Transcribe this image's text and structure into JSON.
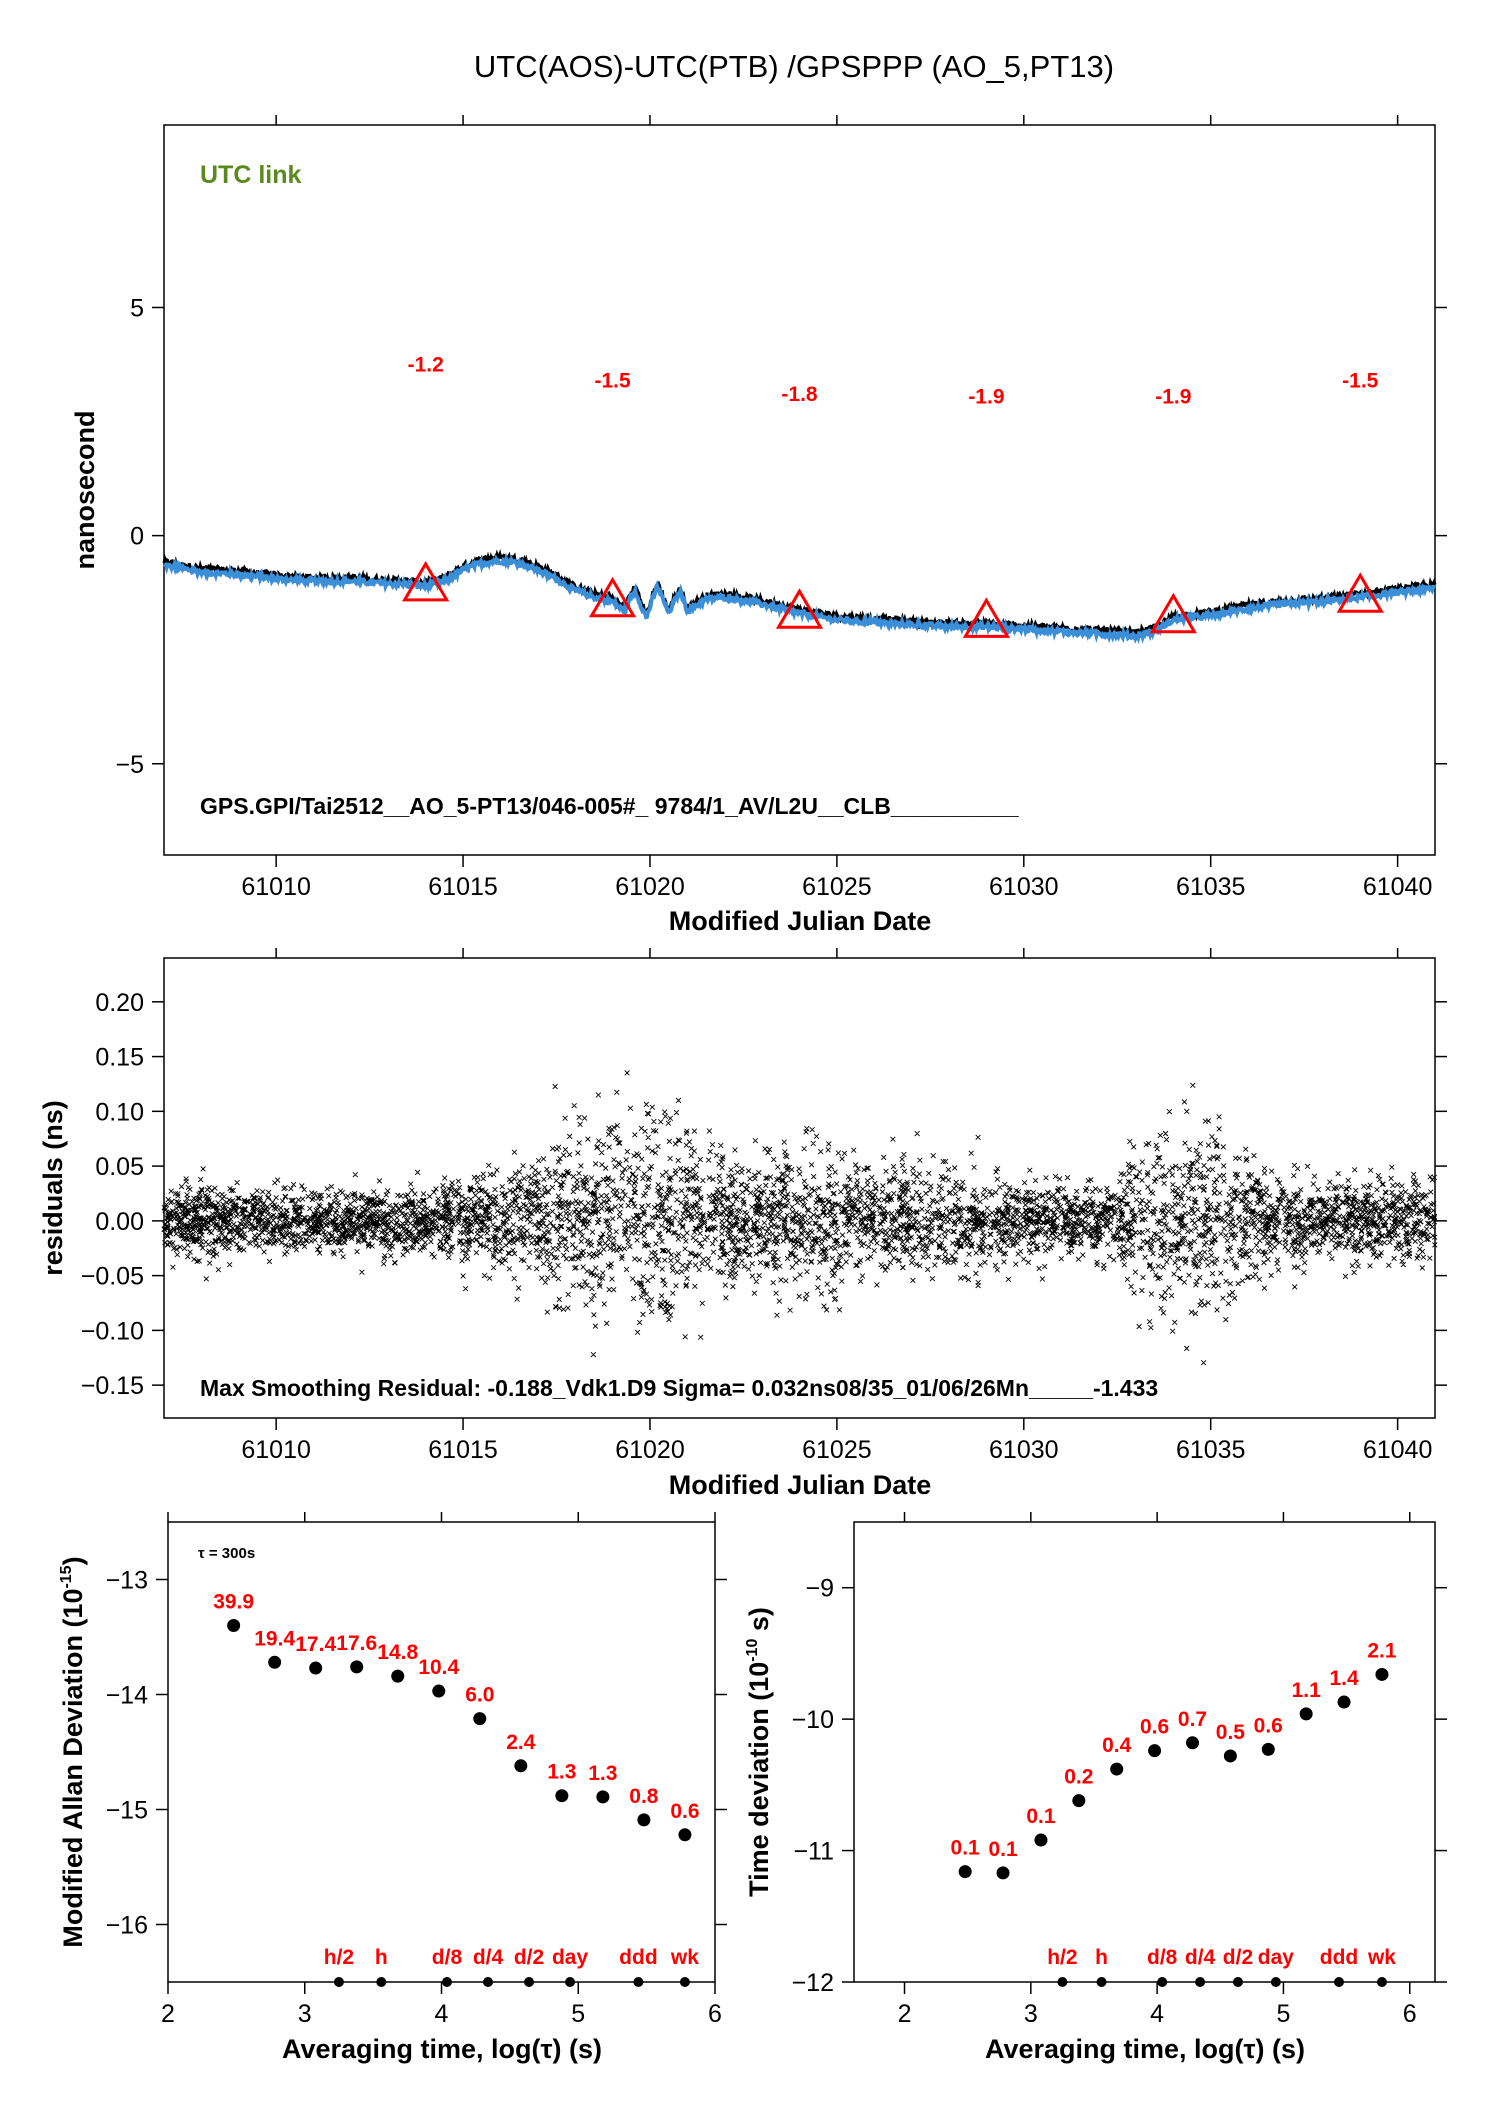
{
  "title": "UTC(AOS)-UTC(PTB)  /GPSPPP  (AO_5,PT13)",
  "chart_data": [
    {
      "type": "line",
      "name": "top",
      "xlabel": "Modified Julian Date",
      "ylabel": "nanosecond",
      "xlim": [
        61007,
        61041
      ],
      "ylim": [
        -7,
        9
      ],
      "x_ticks": [
        61010,
        61015,
        61020,
        61025,
        61030,
        61035,
        61040
      ],
      "y_ticks": [
        -5,
        0,
        5
      ],
      "y_tick_labels": [
        "−5",
        "0",
        "5"
      ],
      "annotation_link": "UTC link",
      "annotation_file": "GPS.GPI/Tai2512__AO_5-PT13/046-005#_  9784/1_AV/L2U__CLB__________",
      "line_color": "#3b8fd9",
      "shadow_color": "#000000",
      "marker_color": "#ff0000",
      "curve": {
        "x": [
          61007,
          61008,
          61009,
          61010,
          61011,
          61012,
          61013,
          61014,
          61014.5,
          61015,
          61015.5,
          61016,
          61016.5,
          61017,
          61017.5,
          61018,
          61018.5,
          61019,
          61019.3,
          61019.6,
          61019.9,
          61020.2,
          61020.5,
          61020.8,
          61021,
          61021.5,
          61022,
          61023,
          61024,
          61025,
          61026,
          61027,
          61028,
          61029,
          61030,
          61031,
          61032,
          61033,
          61033.5,
          61034,
          61035,
          61036,
          61037,
          61038,
          61039,
          61040,
          61041
        ],
        "y": [
          -0.65,
          -0.8,
          -0.85,
          -0.95,
          -1.0,
          -1.0,
          -1.05,
          -1.1,
          -1.0,
          -0.75,
          -0.6,
          -0.55,
          -0.6,
          -0.75,
          -0.95,
          -1.2,
          -1.35,
          -1.45,
          -1.65,
          -1.2,
          -1.8,
          -1.1,
          -1.7,
          -1.2,
          -1.65,
          -1.4,
          -1.35,
          -1.5,
          -1.7,
          -1.85,
          -1.9,
          -1.95,
          -2.0,
          -2.0,
          -2.05,
          -2.1,
          -2.15,
          -2.2,
          -2.1,
          -1.85,
          -1.75,
          -1.6,
          -1.5,
          -1.45,
          -1.35,
          -1.25,
          -1.15
        ]
      },
      "markers": [
        {
          "x": 61014,
          "y": -1.1,
          "label": "-1.2",
          "label_y": 3.6
        },
        {
          "x": 61019,
          "y": -1.45,
          "label": "-1.5",
          "label_y": 3.25
        },
        {
          "x": 61024,
          "y": -1.7,
          "label": "-1.8",
          "label_y": 2.95
        },
        {
          "x": 61029,
          "y": -1.9,
          "label": "-1.9",
          "label_y": 2.9
        },
        {
          "x": 61034,
          "y": -1.8,
          "label": "-1.9",
          "label_y": 2.9
        },
        {
          "x": 61039,
          "y": -1.35,
          "label": "-1.5",
          "label_y": 3.25
        }
      ]
    },
    {
      "type": "scatter",
      "name": "residuals",
      "xlabel": "Modified Julian Date",
      "ylabel": "residuals (ns)",
      "xlim": [
        61007,
        61041
      ],
      "ylim": [
        -0.18,
        0.24
      ],
      "x_ticks": [
        61010,
        61015,
        61020,
        61025,
        61030,
        61035,
        61040
      ],
      "y_ticks": [
        -0.15,
        -0.1,
        -0.05,
        0.0,
        0.05,
        0.1,
        0.15,
        0.2
      ],
      "y_tick_labels": [
        "−0.15",
        "−0.10",
        "−0.05",
        "0.00",
        "0.05",
        "0.10",
        "0.15",
        "0.20"
      ],
      "annotation": "Max Smoothing Residual: -0.188_Vdk1.D9  Sigma= 0.032ns08/35_01/06/26Mn_____-1.433",
      "marker": "x",
      "spread_profile": {
        "x": [
          61007,
          61010,
          61013,
          61015,
          61016,
          61017.5,
          61018.5,
          61019.5,
          61020.5,
          61021.5,
          61022.5,
          61023.5,
          61024.5,
          61025.5,
          61027,
          61028.5,
          61030,
          61031.5,
          61032.5,
          61033.5,
          61034.5,
          61035.5,
          61036.5,
          61038,
          61039.5,
          61041
        ],
        "sigma": [
          0.022,
          0.02,
          0.02,
          0.024,
          0.03,
          0.05,
          0.06,
          0.065,
          0.06,
          0.045,
          0.035,
          0.042,
          0.045,
          0.035,
          0.03,
          0.028,
          0.022,
          0.02,
          0.028,
          0.055,
          0.06,
          0.05,
          0.03,
          0.022,
          0.025,
          0.025
        ]
      }
    },
    {
      "type": "scatter",
      "name": "mdev",
      "xlabel": "Averaging time, log(τ) (s)",
      "ylabel": "Modified Allan Deviation (10",
      "ylabel_sup": "-15",
      "ylabel_end": ")",
      "xlim": [
        2,
        6
      ],
      "ylim": [
        -16.5,
        -12.5
      ],
      "x_ticks": [
        2,
        3,
        4,
        5,
        6
      ],
      "y_ticks": [
        -16,
        -15,
        -14,
        -13
      ],
      "y_tick_labels": [
        "−16",
        "−15",
        "−14",
        "−13"
      ],
      "tau_label": "τ = 300s",
      "x": [
        2.48,
        2.78,
        3.08,
        3.38,
        3.68,
        3.98,
        4.28,
        4.58,
        4.88,
        5.18,
        5.48,
        5.78
      ],
      "y": [
        -13.4,
        -13.72,
        -13.77,
        -13.76,
        -13.84,
        -13.97,
        -14.21,
        -14.62,
        -14.88,
        -14.89,
        -15.09,
        -15.22
      ],
      "labels": [
        "39.9",
        "19.4",
        "17.4",
        "17.6",
        "14.8",
        "10.4",
        "6.0",
        "2.4",
        "1.3",
        "1.3",
        "0.8",
        "0.6"
      ],
      "interval_x": [
        3.25,
        3.56,
        4.04,
        4.34,
        4.64,
        4.94,
        5.44,
        5.78
      ],
      "interval_labels": [
        "h/2",
        "h",
        "d/8",
        "d/4",
        "d/2",
        "day",
        "ddd",
        "wk"
      ]
    },
    {
      "type": "scatter",
      "name": "tdev",
      "xlabel": "Averaging time, log(τ) (s)",
      "ylabel": "Time deviation (10",
      "ylabel_sup": "-10",
      "ylabel_end": " s)",
      "xlim": [
        1.6,
        6.2
      ],
      "ylim": [
        -12,
        -8.5
      ],
      "x_ticks": [
        2,
        3,
        4,
        5,
        6
      ],
      "y_ticks": [
        -12,
        -11,
        -10,
        -9
      ],
      "y_tick_labels": [
        "−12",
        "−11",
        "−10",
        "−9"
      ],
      "x": [
        2.48,
        2.78,
        3.08,
        3.38,
        3.68,
        3.98,
        4.28,
        4.58,
        4.88,
        5.18,
        5.48,
        5.78
      ],
      "y": [
        -11.16,
        -11.17,
        -10.92,
        -10.62,
        -10.38,
        -10.24,
        -10.18,
        -10.28,
        -10.23,
        -9.96,
        -9.87,
        -9.66
      ],
      "labels": [
        "0.1",
        "0.1",
        "0.1",
        "0.2",
        "0.4",
        "0.6",
        "0.7",
        "0.5",
        "0.6",
        "1.1",
        "1.4",
        "2.1"
      ],
      "interval_x": [
        3.25,
        3.56,
        4.04,
        4.34,
        4.64,
        4.94,
        5.44,
        5.78
      ],
      "interval_labels": [
        "h/2",
        "h",
        "d/8",
        "d/4",
        "d/2",
        "day",
        "ddd",
        "wk"
      ]
    }
  ]
}
